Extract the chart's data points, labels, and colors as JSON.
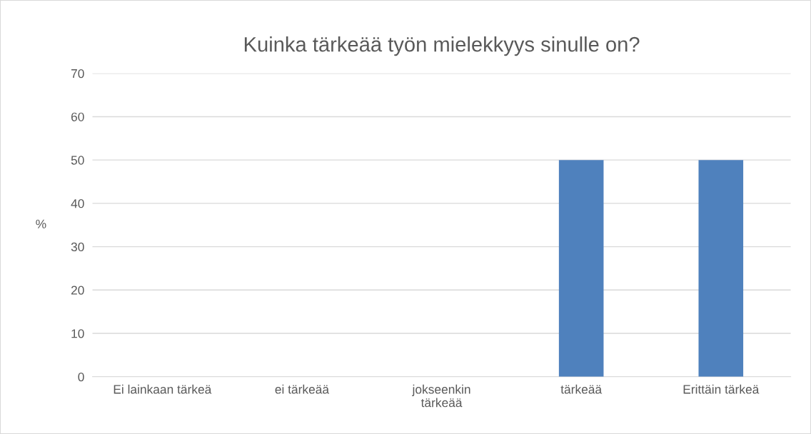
{
  "chart_data": {
    "type": "bar",
    "title": "Kuinka tärkeää työn mielekkyys sinulle on?",
    "ylabel": "%",
    "categories": [
      "Ei lainkaan tärkeä",
      "ei tärkeää",
      "jokseenkin\ntärkeää",
      "tärkeää",
      "Erittäin tärkeä"
    ],
    "values": [
      0,
      0,
      0,
      50,
      50
    ],
    "color": "#4f81bd",
    "ylim": [
      0,
      70
    ],
    "yticks": [
      0,
      10,
      20,
      30,
      40,
      50,
      60,
      70
    ],
    "grid": "y",
    "legend": false
  }
}
